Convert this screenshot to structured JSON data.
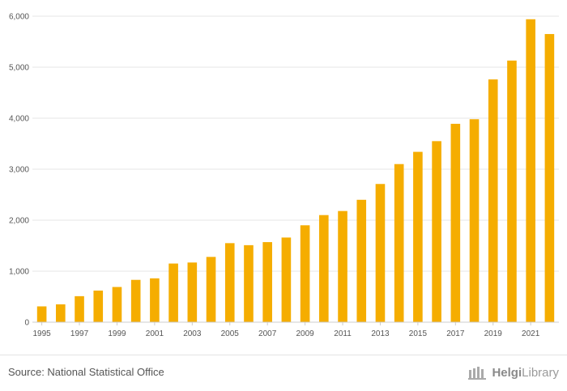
{
  "chart_data": {
    "type": "bar",
    "categories": [
      "1995",
      "1996",
      "1997",
      "1998",
      "1999",
      "2000",
      "2001",
      "2002",
      "2003",
      "2004",
      "2005",
      "2006",
      "2007",
      "2008",
      "2009",
      "2010",
      "2011",
      "2012",
      "2013",
      "2014",
      "2015",
      "2016",
      "2017",
      "2018",
      "2019",
      "2020",
      "2021",
      "2022"
    ],
    "x_tick_labels": [
      "1995",
      "1997",
      "1999",
      "2001",
      "2003",
      "2005",
      "2007",
      "2009",
      "2011",
      "2013",
      "2015",
      "2017",
      "2019",
      "2021"
    ],
    "values": [
      310,
      350,
      510,
      620,
      690,
      830,
      860,
      1150,
      1170,
      1280,
      1550,
      1510,
      1570,
      1660,
      1900,
      2100,
      2180,
      2400,
      2710,
      3100,
      3340,
      3550,
      3890,
      3980,
      4760,
      5130,
      5940,
      5650
    ],
    "ylim": [
      0,
      6000
    ],
    "y_ticks": [
      0,
      1000,
      2000,
      3000,
      4000,
      5000,
      6000
    ],
    "y_tick_labels": [
      "0",
      "1,000",
      "2,000",
      "3,000",
      "4,000",
      "5,000",
      "6,000"
    ],
    "title": "",
    "xlabel": "",
    "ylabel": "",
    "bar_color": "#f5ad00",
    "grid": true
  },
  "footer": {
    "source": "Source: National Statistical Office",
    "logo_text_bold": "Helgi",
    "logo_text_rest": "Library"
  },
  "colors": {
    "bar": "#f5ad00",
    "grid": "#e6e6e6",
    "text": "#555555"
  }
}
